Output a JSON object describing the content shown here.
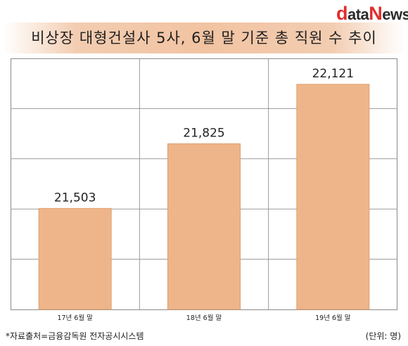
{
  "logo": {
    "d": "d",
    "ata": "ata",
    "n": "N",
    "ews": "ews"
  },
  "title": "비상장 대형건설사 5사, 6월 말 기준 총 직원 수 추이",
  "footer": {
    "source": "*자료출처=금융감독원  전자공시시스템",
    "unit": "(단위: 명)"
  },
  "colors": {
    "bar": "#efb58a",
    "bar_stroke": "#dea06f",
    "grid": "#9a9a9a"
  },
  "chart_data": {
    "type": "bar",
    "categories": [
      "17년 6월 말",
      "18년 6월 말",
      "19년 6월 말"
    ],
    "values": [
      21503,
      21825,
      22121
    ],
    "value_labels": [
      "21,503",
      "21,825",
      "22,121"
    ],
    "title": "비상장 대형건설사 5사, 6월 말 기준 총 직원 수 추이",
    "xlabel": "",
    "ylabel": "",
    "ylim": [
      21000,
      22250
    ],
    "grid": true,
    "legend": "none"
  }
}
